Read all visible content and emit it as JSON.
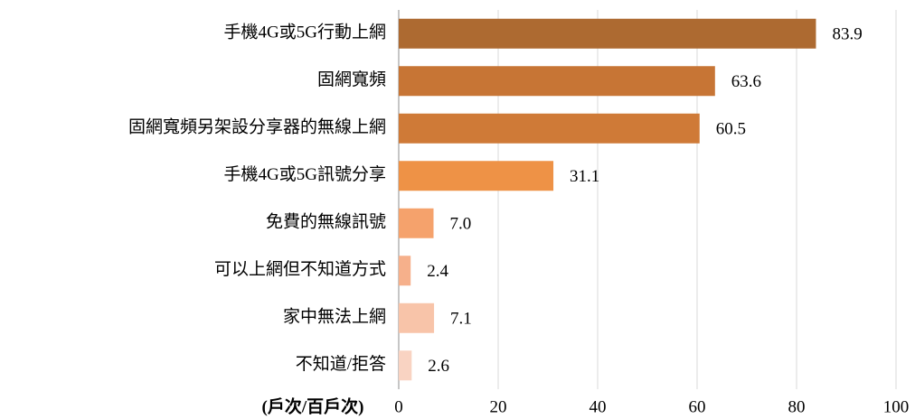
{
  "chart_data": {
    "type": "bar",
    "orientation": "horizontal",
    "x_label": "(戶次/百戶次)",
    "categories": [
      "手機4G或5G行動上網",
      "固網寬頻",
      "固網寬頻另架設分享器的無線上網",
      "手機4G或5G訊號分享",
      "免費的無線訊號",
      "可以上網但不知道方式",
      "家中無法上網",
      "不知道/拒答"
    ],
    "values": [
      83.9,
      63.6,
      60.5,
      31.1,
      7.0,
      2.4,
      7.1,
      2.6
    ],
    "value_labels": [
      "83.9",
      "63.6",
      "60.5",
      "31.1",
      "7.0",
      "2.4",
      "7.1",
      "2.6"
    ],
    "colors": [
      "#ad6a31",
      "#c77535",
      "#cf7a37",
      "#ee9246",
      "#f5a26c",
      "#f6b08b",
      "#f8c4a9",
      "#f9d3c2"
    ],
    "xlim": [
      0,
      100
    ],
    "xticks": [
      0,
      20,
      40,
      60,
      80,
      100
    ],
    "grid": true
  }
}
